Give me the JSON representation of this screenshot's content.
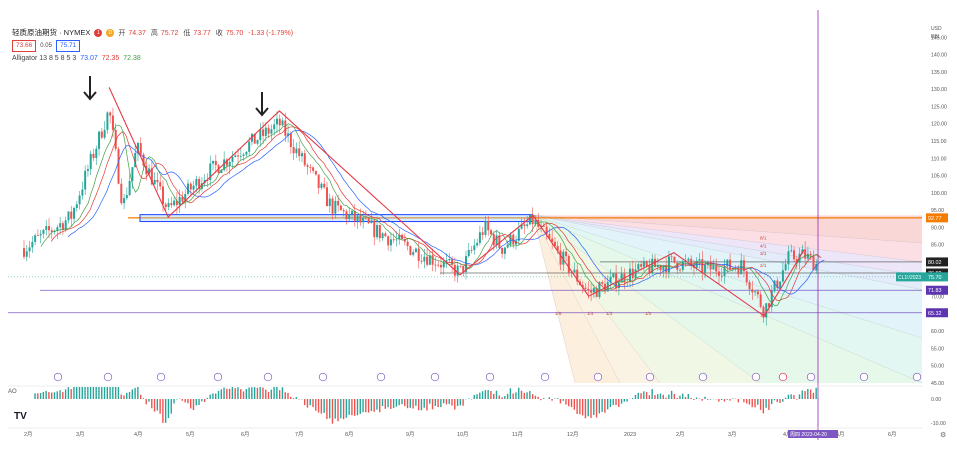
{
  "header": {
    "symbol": "轻质原油期货 · NYMEX",
    "dot_red": "1",
    "dot_orange": "D",
    "ohlc": {
      "open_label": "开",
      "open": "74.37",
      "high_label": "高",
      "high": "75.72",
      "low_label": "低",
      "low": "73.77",
      "close_label": "收",
      "close": "75.70",
      "change": "-1.33 (-1.79%)"
    },
    "bid": "73.66",
    "spread": "0.05",
    "ask": "75.71"
  },
  "indicator_legend": {
    "name": "Alligator 13 8 5 8 5 3",
    "v1": "73.07",
    "v2": "72.35",
    "v3": "72.38"
  },
  "ao_label": "AO",
  "logo": "TV",
  "colors": {
    "up": "#26a69a",
    "down": "#ef5350",
    "jaw": "#2962ff",
    "teeth": "#e53935",
    "lips": "#43a047",
    "annotation": "#e53946",
    "pivot_line": "#7e57c2",
    "orange_level": "#f57c00"
  },
  "axis": {
    "currency": "USD",
    "unit": "BBL",
    "y_ticks": [
      "145.00",
      "140.00",
      "135.00",
      "130.00",
      "125.00",
      "120.00",
      "115.00",
      "110.00",
      "105.00",
      "100.00",
      "95.00",
      "90.00",
      "85.00",
      "80.00",
      "75.00",
      "70.00",
      "65.00",
      "60.00",
      "55.00",
      "50.00",
      "45.00"
    ],
    "ao_ticks": [
      "0.00",
      "-10.00"
    ],
    "x_ticks": [
      "2月",
      "3月",
      "4月",
      "5月",
      "6月",
      "7月",
      "8月",
      "9月",
      "10月",
      "11月",
      "12月",
      "2023",
      "2月",
      "3月",
      "4月",
      "5月",
      "6月"
    ],
    "cursor_date": "周四 2023-04-20"
  },
  "price_labels": {
    "orange": "92.77",
    "p1": "80.02",
    "p2": "76.82",
    "symbol_tag": "CL1!/2023",
    "last": "75.70",
    "p3": "71.83",
    "p4": "65.32"
  },
  "fan_labels": {
    "r1": "8/1",
    "r2": "4/1",
    "r3": "3/1",
    "r4": "2/1",
    "b1": "1/8",
    "b2": "1/4",
    "b3": "1/3",
    "b4": "1/2",
    "mid": "1/1"
  },
  "chart_data": {
    "type": "candlestick",
    "x_range": [
      "2022-01",
      "2023-06"
    ],
    "y_range": [
      45,
      150
    ],
    "last_price": 75.7,
    "horizontal_levels": [
      92.77,
      80.02,
      76.82,
      75.7,
      71.83,
      65.32
    ],
    "annotated_highs": [
      130.5,
      123.7
    ],
    "trend_path": [
      {
        "date": "2022-03-08",
        "price": 130.5
      },
      {
        "date": "2022-04-11",
        "price": 93.0
      },
      {
        "date": "2022-06-14",
        "price": 123.7
      },
      {
        "date": "2022-09-26",
        "price": 76.3
      },
      {
        "date": "2022-11-07",
        "price": 93.5
      },
      {
        "date": "2022-12-09",
        "price": 70.1
      },
      {
        "date": "2023-01-27",
        "price": 82.7
      },
      {
        "date": "2023-03-20",
        "price": 64.4
      },
      {
        "date": "2023-04-12",
        "price": 83.5
      }
    ],
    "series": [
      {
        "name": "Alligator 13",
        "last": 73.07
      },
      {
        "name": "Alligator 8",
        "last": 72.35
      },
      {
        "name": "Alligator 5",
        "last": 72.38
      }
    ],
    "ao_ticks": [
      0,
      -10
    ]
  }
}
